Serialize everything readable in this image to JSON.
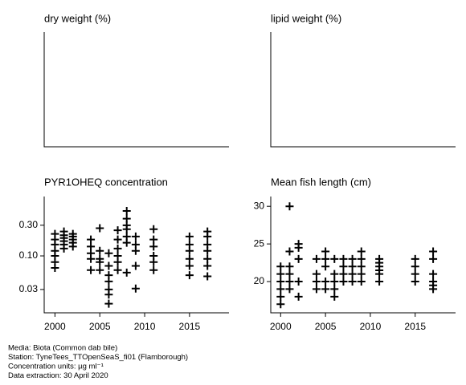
{
  "chart_data": [
    {
      "type": "scatter",
      "title": "dry weight (%)"
    },
    {
      "type": "scatter",
      "title": "lipid weight (%)"
    },
    {
      "type": "scatter",
      "title": "PYR1OHEQ concentration",
      "log_scale": true,
      "xlim": [
        1998.8,
        2019.4
      ],
      "xticks": [
        2000,
        2005,
        2010,
        2015
      ],
      "ylim": [
        0.013,
        0.84
      ],
      "yticks": [
        {
          "value": 0.3,
          "label": "0.30"
        },
        {
          "value": 0.1,
          "label": "0.10"
        },
        0.03
      ],
      "x": [
        2000,
        2000,
        2000,
        2000,
        2000,
        2000,
        2000,
        2001,
        2001,
        2001,
        2001,
        2001,
        2001,
        2002,
        2002,
        2002,
        2002,
        2002,
        2004,
        2004,
        2004,
        2004,
        2004,
        2005,
        2005,
        2005,
        2005,
        2005,
        2006,
        2006,
        2006,
        2006,
        2006,
        2006,
        2006,
        2007,
        2007,
        2007,
        2007,
        2007,
        2007,
        2008,
        2008,
        2008,
        2008,
        2008,
        2008,
        2008,
        2009,
        2009,
        2009,
        2009,
        2009,
        2011,
        2011,
        2011,
        2011,
        2011,
        2011,
        2015,
        2015,
        2015,
        2015,
        2015,
        2015,
        2017,
        2017,
        2017,
        2017,
        2017,
        2017,
        2017
      ],
      "values": [
        0.22,
        0.18,
        0.15,
        0.12,
        0.1,
        0.08,
        0.065,
        0.24,
        0.21,
        0.19,
        0.17,
        0.15,
        0.13,
        0.22,
        0.2,
        0.18,
        0.16,
        0.14,
        0.18,
        0.14,
        0.11,
        0.09,
        0.06,
        0.27,
        0.12,
        0.09,
        0.08,
        0.06,
        0.11,
        0.07,
        0.05,
        0.04,
        0.03,
        0.025,
        0.018,
        0.25,
        0.18,
        0.13,
        0.1,
        0.08,
        0.06,
        0.5,
        0.38,
        0.3,
        0.26,
        0.2,
        0.16,
        0.055,
        0.2,
        0.15,
        0.12,
        0.07,
        0.031,
        0.26,
        0.18,
        0.14,
        0.1,
        0.08,
        0.06,
        0.2,
        0.15,
        0.12,
        0.09,
        0.07,
        0.05,
        0.24,
        0.2,
        0.15,
        0.12,
        0.09,
        0.07,
        0.048
      ]
    },
    {
      "type": "scatter",
      "title": "Mean fish length (cm)",
      "xlim": [
        1998.9,
        2019.5
      ],
      "xticks": [
        2000,
        2005,
        2010,
        2015
      ],
      "ylim": [
        15.85,
        31.3
      ],
      "yticks": [
        30,
        25,
        20
      ],
      "x": [
        2000,
        2000,
        2000,
        2000,
        2000,
        2000,
        2001,
        2001,
        2001,
        2001,
        2001,
        2001,
        2002,
        2002,
        2002,
        2002,
        2002,
        2004,
        2004,
        2004,
        2004,
        2005,
        2005,
        2005,
        2005,
        2005,
        2006,
        2006,
        2006,
        2006,
        2006,
        2007,
        2007,
        2007,
        2007,
        2008,
        2008,
        2008,
        2008,
        2009,
        2009,
        2009,
        2009,
        2009,
        2011,
        2011,
        2011,
        2011,
        2011,
        2011,
        2015,
        2015,
        2015,
        2015,
        2017,
        2017,
        2017,
        2017,
        2017,
        2017
      ],
      "values": [
        17,
        18,
        19,
        20,
        21,
        22,
        30,
        24,
        22,
        21,
        20,
        19,
        25,
        24.5,
        23,
        20,
        18,
        23,
        21,
        20,
        19,
        24,
        23,
        22,
        20,
        19,
        23,
        21,
        20,
        19,
        18,
        23,
        22,
        21,
        20,
        23,
        22,
        21,
        20,
        24,
        23,
        22,
        21,
        20,
        23,
        22.5,
        22,
        21.5,
        21,
        20,
        23,
        22,
        21,
        20,
        24,
        23,
        21,
        20,
        19.5,
        19
      ]
    }
  ],
  "footer": [
    "Media: Biota (Common dab bile)",
    "Station: TyneTees_TTOpenSeaS_fi01 (Flamborough)",
    "Concentration units: µg ml⁻¹",
    "Data extraction: 30 April 2020"
  ]
}
